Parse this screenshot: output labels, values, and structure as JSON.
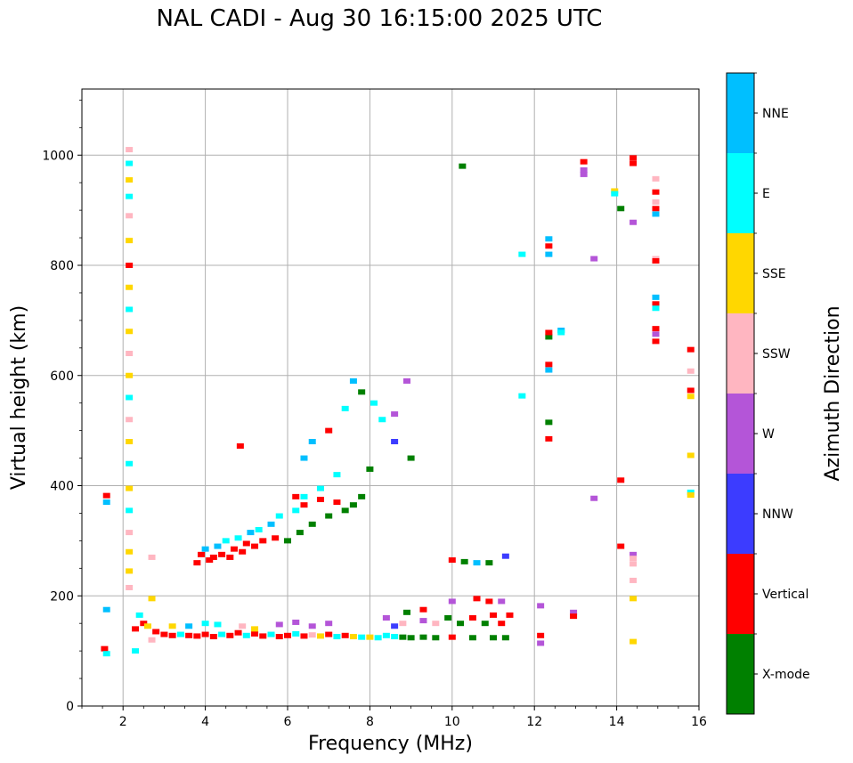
{
  "chart_data": {
    "type": "scatter",
    "title": "NAL CADI - Aug 30 16:15:00 2025 UTC",
    "xlabel": "Frequency (MHz)",
    "ylabel": "Virtual height (km)",
    "xlim": [
      1,
      16
    ],
    "ylim": [
      0,
      1120
    ],
    "xticks": [
      2,
      4,
      6,
      8,
      10,
      12,
      14,
      16
    ],
    "yticks": [
      0,
      200,
      400,
      600,
      800,
      1000
    ],
    "grid": true,
    "colorbar": {
      "label": "Azimuth Direction",
      "categories": [
        {
          "name": "X-mode",
          "color": "#008000"
        },
        {
          "name": "Vertical",
          "color": "#ff0000"
        },
        {
          "name": "NNW",
          "color": "#3c3cff"
        },
        {
          "name": "W",
          "color": "#b455d8"
        },
        {
          "name": "SSW",
          "color": "#ffb6c1"
        },
        {
          "name": "SSE",
          "color": "#ffd700"
        },
        {
          "name": "E",
          "color": "#00ffff"
        },
        {
          "name": "NNE",
          "color": "#00bfff"
        }
      ]
    },
    "points": [
      {
        "f": 1.55,
        "h": 104,
        "d": "Vertical"
      },
      {
        "f": 1.6,
        "h": 95,
        "d": "E"
      },
      {
        "f": 1.6,
        "h": 175,
        "d": "NNE"
      },
      {
        "f": 1.6,
        "h": 382,
        "d": "Vertical"
      },
      {
        "f": 1.6,
        "h": 370,
        "d": "NNE"
      },
      {
        "f": 2.15,
        "h": 1010,
        "d": "SSW"
      },
      {
        "f": 2.15,
        "h": 985,
        "d": "E"
      },
      {
        "f": 2.15,
        "h": 955,
        "d": "SSE"
      },
      {
        "f": 2.15,
        "h": 925,
        "d": "E"
      },
      {
        "f": 2.15,
        "h": 890,
        "d": "SSW"
      },
      {
        "f": 2.15,
        "h": 845,
        "d": "SSE"
      },
      {
        "f": 2.15,
        "h": 800,
        "d": "Vertical"
      },
      {
        "f": 2.15,
        "h": 760,
        "d": "SSE"
      },
      {
        "f": 2.15,
        "h": 720,
        "d": "E"
      },
      {
        "f": 2.15,
        "h": 680,
        "d": "SSE"
      },
      {
        "f": 2.15,
        "h": 640,
        "d": "SSW"
      },
      {
        "f": 2.15,
        "h": 600,
        "d": "SSE"
      },
      {
        "f": 2.15,
        "h": 560,
        "d": "E"
      },
      {
        "f": 2.15,
        "h": 520,
        "d": "SSW"
      },
      {
        "f": 2.15,
        "h": 480,
        "d": "SSE"
      },
      {
        "f": 2.15,
        "h": 440,
        "d": "E"
      },
      {
        "f": 2.15,
        "h": 395,
        "d": "SSE"
      },
      {
        "f": 2.15,
        "h": 355,
        "d": "E"
      },
      {
        "f": 2.15,
        "h": 315,
        "d": "SSW"
      },
      {
        "f": 2.15,
        "h": 280,
        "d": "SSE"
      },
      {
        "f": 2.15,
        "h": 245,
        "d": "SSE"
      },
      {
        "f": 2.15,
        "h": 215,
        "d": "SSW"
      },
      {
        "f": 2.7,
        "h": 270,
        "d": "SSW"
      },
      {
        "f": 2.7,
        "h": 195,
        "d": "SSE"
      },
      {
        "f": 2.7,
        "h": 120,
        "d": "SSW"
      },
      {
        "f": 2.4,
        "h": 165,
        "d": "E"
      },
      {
        "f": 2.3,
        "h": 140,
        "d": "Vertical"
      },
      {
        "f": 2.5,
        "h": 150,
        "d": "Vertical"
      },
      {
        "f": 2.6,
        "h": 145,
        "d": "SSE"
      },
      {
        "f": 2.3,
        "h": 100,
        "d": "E"
      },
      {
        "f": 2.8,
        "h": 135,
        "d": "Vertical"
      },
      {
        "f": 3.0,
        "h": 130,
        "d": "Vertical"
      },
      {
        "f": 3.2,
        "h": 128,
        "d": "Vertical"
      },
      {
        "f": 3.4,
        "h": 130,
        "d": "E"
      },
      {
        "f": 3.6,
        "h": 128,
        "d": "Vertical"
      },
      {
        "f": 3.8,
        "h": 127,
        "d": "Vertical"
      },
      {
        "f": 4.0,
        "h": 130,
        "d": "Vertical"
      },
      {
        "f": 4.2,
        "h": 126,
        "d": "Vertical"
      },
      {
        "f": 4.4,
        "h": 130,
        "d": "E"
      },
      {
        "f": 4.6,
        "h": 128,
        "d": "Vertical"
      },
      {
        "f": 4.8,
        "h": 133,
        "d": "Vertical"
      },
      {
        "f": 5.0,
        "h": 128,
        "d": "E"
      },
      {
        "f": 5.2,
        "h": 131,
        "d": "Vertical"
      },
      {
        "f": 5.4,
        "h": 127,
        "d": "Vertical"
      },
      {
        "f": 5.6,
        "h": 130,
        "d": "E"
      },
      {
        "f": 5.8,
        "h": 126,
        "d": "Vertical"
      },
      {
        "f": 6.0,
        "h": 128,
        "d": "Vertical"
      },
      {
        "f": 6.2,
        "h": 131,
        "d": "E"
      },
      {
        "f": 6.4,
        "h": 127,
        "d": "Vertical"
      },
      {
        "f": 6.6,
        "h": 129,
        "d": "SSW"
      },
      {
        "f": 6.8,
        "h": 127,
        "d": "SSE"
      },
      {
        "f": 7.0,
        "h": 130,
        "d": "Vertical"
      },
      {
        "f": 7.2,
        "h": 126,
        "d": "E"
      },
      {
        "f": 7.4,
        "h": 128,
        "d": "Vertical"
      },
      {
        "f": 7.6,
        "h": 126,
        "d": "SSE"
      },
      {
        "f": 7.8,
        "h": 125,
        "d": "E"
      },
      {
        "f": 8.0,
        "h": 125,
        "d": "SSE"
      },
      {
        "f": 8.2,
        "h": 124,
        "d": "E"
      },
      {
        "f": 8.4,
        "h": 128,
        "d": "E"
      },
      {
        "f": 8.6,
        "h": 126,
        "d": "E"
      },
      {
        "f": 8.8,
        "h": 125,
        "d": "X-mode"
      },
      {
        "f": 9.0,
        "h": 124,
        "d": "X-mode"
      },
      {
        "f": 9.3,
        "h": 125,
        "d": "X-mode"
      },
      {
        "f": 9.6,
        "h": 124,
        "d": "X-mode"
      },
      {
        "f": 10.0,
        "h": 125,
        "d": "Vertical"
      },
      {
        "f": 10.5,
        "h": 124,
        "d": "X-mode"
      },
      {
        "f": 11.0,
        "h": 124,
        "d": "X-mode"
      },
      {
        "f": 11.3,
        "h": 124,
        "d": "X-mode"
      },
      {
        "f": 3.2,
        "h": 145,
        "d": "SSE"
      },
      {
        "f": 3.6,
        "h": 145,
        "d": "NNE"
      },
      {
        "f": 4.0,
        "h": 150,
        "d": "E"
      },
      {
        "f": 4.3,
        "h": 148,
        "d": "E"
      },
      {
        "f": 4.9,
        "h": 145,
        "d": "SSW"
      },
      {
        "f": 5.2,
        "h": 140,
        "d": "SSE"
      },
      {
        "f": 5.8,
        "h": 148,
        "d": "W"
      },
      {
        "f": 6.2,
        "h": 152,
        "d": "W"
      },
      {
        "f": 6.6,
        "h": 145,
        "d": "W"
      },
      {
        "f": 7.0,
        "h": 150,
        "d": "W"
      },
      {
        "f": 8.4,
        "h": 160,
        "d": "W"
      },
      {
        "f": 8.6,
        "h": 145,
        "d": "NNW"
      },
      {
        "f": 8.8,
        "h": 150,
        "d": "SSW"
      },
      {
        "f": 9.3,
        "h": 155,
        "d": "W"
      },
      {
        "f": 9.6,
        "h": 150,
        "d": "SSW"
      },
      {
        "f": 9.9,
        "h": 160,
        "d": "X-mode"
      },
      {
        "f": 10.2,
        "h": 150,
        "d": "X-mode"
      },
      {
        "f": 10.5,
        "h": 160,
        "d": "Vertical"
      },
      {
        "f": 10.8,
        "h": 150,
        "d": "X-mode"
      },
      {
        "f": 11.0,
        "h": 165,
        "d": "Vertical"
      },
      {
        "f": 11.2,
        "h": 150,
        "d": "Vertical"
      },
      {
        "f": 11.4,
        "h": 165,
        "d": "Vertical"
      },
      {
        "f": 8.9,
        "h": 170,
        "d": "X-mode"
      },
      {
        "f": 9.3,
        "h": 175,
        "d": "Vertical"
      },
      {
        "f": 10.0,
        "h": 190,
        "d": "W"
      },
      {
        "f": 10.6,
        "h": 195,
        "d": "Vertical"
      },
      {
        "f": 10.9,
        "h": 190,
        "d": "Vertical"
      },
      {
        "f": 11.2,
        "h": 190,
        "d": "W"
      },
      {
        "f": 3.8,
        "h": 260,
        "d": "Vertical"
      },
      {
        "f": 3.9,
        "h": 275,
        "d": "Vertical"
      },
      {
        "f": 4.0,
        "h": 285,
        "d": "NNE"
      },
      {
        "f": 4.1,
        "h": 265,
        "d": "Vertical"
      },
      {
        "f": 4.2,
        "h": 270,
        "d": "Vertical"
      },
      {
        "f": 4.3,
        "h": 290,
        "d": "NNE"
      },
      {
        "f": 4.4,
        "h": 275,
        "d": "Vertical"
      },
      {
        "f": 4.5,
        "h": 300,
        "d": "E"
      },
      {
        "f": 4.6,
        "h": 270,
        "d": "Vertical"
      },
      {
        "f": 4.7,
        "h": 285,
        "d": "Vertical"
      },
      {
        "f": 4.8,
        "h": 305,
        "d": "E"
      },
      {
        "f": 4.9,
        "h": 280,
        "d": "Vertical"
      },
      {
        "f": 5.0,
        "h": 295,
        "d": "Vertical"
      },
      {
        "f": 5.1,
        "h": 315,
        "d": "NNE"
      },
      {
        "f": 5.2,
        "h": 290,
        "d": "Vertical"
      },
      {
        "f": 5.3,
        "h": 320,
        "d": "E"
      },
      {
        "f": 5.4,
        "h": 300,
        "d": "Vertical"
      },
      {
        "f": 5.6,
        "h": 330,
        "d": "NNE"
      },
      {
        "f": 5.7,
        "h": 305,
        "d": "Vertical"
      },
      {
        "f": 5.8,
        "h": 345,
        "d": "E"
      },
      {
        "f": 6.0,
        "h": 300,
        "d": "X-mode"
      },
      {
        "f": 6.2,
        "h": 355,
        "d": "E"
      },
      {
        "f": 6.3,
        "h": 315,
        "d": "X-mode"
      },
      {
        "f": 6.4,
        "h": 380,
        "d": "E"
      },
      {
        "f": 6.6,
        "h": 330,
        "d": "X-mode"
      },
      {
        "f": 6.8,
        "h": 395,
        "d": "E"
      },
      {
        "f": 7.0,
        "h": 345,
        "d": "X-mode"
      },
      {
        "f": 7.2,
        "h": 420,
        "d": "E"
      },
      {
        "f": 7.4,
        "h": 355,
        "d": "X-mode"
      },
      {
        "f": 7.6,
        "h": 365,
        "d": "X-mode"
      },
      {
        "f": 7.8,
        "h": 380,
        "d": "X-mode"
      },
      {
        "f": 6.4,
        "h": 450,
        "d": "NNE"
      },
      {
        "f": 6.6,
        "h": 480,
        "d": "NNE"
      },
      {
        "f": 7.0,
        "h": 500,
        "d": "Vertical"
      },
      {
        "f": 7.4,
        "h": 540,
        "d": "E"
      },
      {
        "f": 7.6,
        "h": 590,
        "d": "NNE"
      },
      {
        "f": 7.8,
        "h": 570,
        "d": "X-mode"
      },
      {
        "f": 8.1,
        "h": 550,
        "d": "E"
      },
      {
        "f": 8.3,
        "h": 520,
        "d": "E"
      },
      {
        "f": 8.6,
        "h": 530,
        "d": "W"
      },
      {
        "f": 8.6,
        "h": 480,
        "d": "NNW"
      },
      {
        "f": 8.9,
        "h": 590,
        "d": "W"
      },
      {
        "f": 9.0,
        "h": 450,
        "d": "X-mode"
      },
      {
        "f": 8.0,
        "h": 430,
        "d": "X-mode"
      },
      {
        "f": 4.85,
        "h": 472,
        "d": "Vertical"
      },
      {
        "f": 6.2,
        "h": 380,
        "d": "Vertical"
      },
      {
        "f": 6.4,
        "h": 365,
        "d": "Vertical"
      },
      {
        "f": 6.8,
        "h": 375,
        "d": "Vertical"
      },
      {
        "f": 7.2,
        "h": 370,
        "d": "Vertical"
      },
      {
        "f": 10.0,
        "h": 265,
        "d": "Vertical"
      },
      {
        "f": 10.3,
        "h": 262,
        "d": "X-mode"
      },
      {
        "f": 10.6,
        "h": 260,
        "d": "NNE"
      },
      {
        "f": 10.9,
        "h": 260,
        "d": "X-mode"
      },
      {
        "f": 11.3,
        "h": 272,
        "d": "NNW"
      },
      {
        "f": 10.25,
        "h": 980,
        "d": "X-mode"
      },
      {
        "f": 11.7,
        "h": 820,
        "d": "E"
      },
      {
        "f": 11.7,
        "h": 563,
        "d": "E"
      },
      {
        "f": 12.15,
        "h": 182,
        "d": "W"
      },
      {
        "f": 12.15,
        "h": 128,
        "d": "Vertical"
      },
      {
        "f": 12.15,
        "h": 114,
        "d": "W"
      },
      {
        "f": 12.35,
        "h": 485,
        "d": "Vertical"
      },
      {
        "f": 12.35,
        "h": 515,
        "d": "X-mode"
      },
      {
        "f": 12.35,
        "h": 610,
        "d": "NNE"
      },
      {
        "f": 12.35,
        "h": 620,
        "d": "Vertical"
      },
      {
        "f": 12.35,
        "h": 670,
        "d": "X-mode"
      },
      {
        "f": 12.35,
        "h": 678,
        "d": "Vertical"
      },
      {
        "f": 12.35,
        "h": 820,
        "d": "NNE"
      },
      {
        "f": 12.35,
        "h": 835,
        "d": "Vertical"
      },
      {
        "f": 12.35,
        "h": 848,
        "d": "NNE"
      },
      {
        "f": 12.65,
        "h": 682,
        "d": "NNE"
      },
      {
        "f": 12.65,
        "h": 678,
        "d": "E"
      },
      {
        "f": 12.95,
        "h": 170,
        "d": "W"
      },
      {
        "f": 12.95,
        "h": 163,
        "d": "Vertical"
      },
      {
        "f": 13.2,
        "h": 988,
        "d": "Vertical"
      },
      {
        "f": 13.2,
        "h": 973,
        "d": "W"
      },
      {
        "f": 13.2,
        "h": 965,
        "d": "W"
      },
      {
        "f": 13.45,
        "h": 812,
        "d": "W"
      },
      {
        "f": 13.45,
        "h": 377,
        "d": "W"
      },
      {
        "f": 13.95,
        "h": 935,
        "d": "SSE"
      },
      {
        "f": 13.95,
        "h": 930,
        "d": "E"
      },
      {
        "f": 14.1,
        "h": 903,
        "d": "X-mode"
      },
      {
        "f": 14.1,
        "h": 410,
        "d": "Vertical"
      },
      {
        "f": 14.1,
        "h": 290,
        "d": "Vertical"
      },
      {
        "f": 14.4,
        "h": 995,
        "d": "Vertical"
      },
      {
        "f": 14.4,
        "h": 985,
        "d": "Vertical"
      },
      {
        "f": 14.4,
        "h": 878,
        "d": "W"
      },
      {
        "f": 14.4,
        "h": 275,
        "d": "W"
      },
      {
        "f": 14.4,
        "h": 268,
        "d": "SSW"
      },
      {
        "f": 14.4,
        "h": 258,
        "d": "SSW"
      },
      {
        "f": 14.4,
        "h": 228,
        "d": "SSW"
      },
      {
        "f": 14.4,
        "h": 195,
        "d": "SSE"
      },
      {
        "f": 14.4,
        "h": 117,
        "d": "SSE"
      },
      {
        "f": 14.95,
        "h": 957,
        "d": "SSW"
      },
      {
        "f": 14.95,
        "h": 933,
        "d": "Vertical"
      },
      {
        "f": 14.95,
        "h": 915,
        "d": "SSW"
      },
      {
        "f": 14.95,
        "h": 903,
        "d": "Vertical"
      },
      {
        "f": 14.95,
        "h": 893,
        "d": "NNE"
      },
      {
        "f": 14.95,
        "h": 812,
        "d": "SSW"
      },
      {
        "f": 14.95,
        "h": 808,
        "d": "Vertical"
      },
      {
        "f": 14.95,
        "h": 742,
        "d": "NNE"
      },
      {
        "f": 14.95,
        "h": 730,
        "d": "Vertical"
      },
      {
        "f": 14.95,
        "h": 722,
        "d": "E"
      },
      {
        "f": 14.95,
        "h": 685,
        "d": "Vertical"
      },
      {
        "f": 14.95,
        "h": 675,
        "d": "W"
      },
      {
        "f": 14.95,
        "h": 662,
        "d": "Vertical"
      },
      {
        "f": 15.8,
        "h": 647,
        "d": "Vertical"
      },
      {
        "f": 15.8,
        "h": 608,
        "d": "SSW"
      },
      {
        "f": 15.8,
        "h": 573,
        "d": "Vertical"
      },
      {
        "f": 15.8,
        "h": 562,
        "d": "SSE"
      },
      {
        "f": 15.8,
        "h": 455,
        "d": "SSE"
      },
      {
        "f": 15.8,
        "h": 388,
        "d": "E"
      },
      {
        "f": 15.8,
        "h": 383,
        "d": "SSE"
      }
    ]
  }
}
